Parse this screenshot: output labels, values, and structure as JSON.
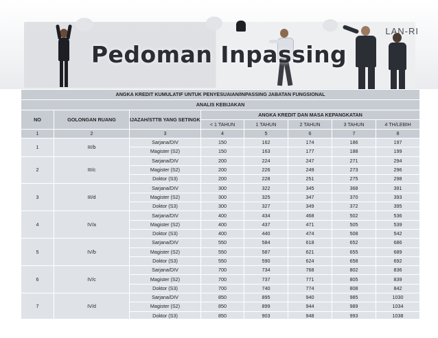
{
  "banner": {
    "title": "Pedoman Inpassing",
    "brand": "LAN-RI"
  },
  "table": {
    "header_main": "ANGKA KREDIT KUMULATIF UNTUK PENYESUAIAN/INPASSING JABATAN FUNGSIONAL",
    "header_sub": "ANALIS KEBIJAKAN",
    "col_no": "NO",
    "col_golongan": "GOLONGAN RUANG",
    "col_ijazah": "IJAZAH/STTB YANG SETINGKAT",
    "col_group": "ANGKA KREDIT DAN MASA KEPANGKATAN",
    "col_years": [
      "< 1 TAHUN",
      "1 TAHUN",
      "2 TAHUN",
      "3 TAHUN",
      "4 TH/LEBIH"
    ],
    "col_numbers": [
      "1",
      "2",
      "3",
      "4",
      "5",
      "6",
      "7",
      "8"
    ],
    "groups": [
      {
        "no": "1",
        "gol": "III/b",
        "rows": [
          {
            "ijazah": "Sarjana/DIV",
            "v": [
              "150",
              "162",
              "174",
              "186",
              "197"
            ]
          },
          {
            "ijazah": "Magister (S2)",
            "v": [
              "150",
              "163",
              "177",
              "188",
              "199"
            ]
          }
        ]
      },
      {
        "no": "2",
        "gol": "III/c",
        "rows": [
          {
            "ijazah": "Sarjana/DIV",
            "v": [
              "200",
              "224",
              "247",
              "271",
              "294"
            ]
          },
          {
            "ijazah": "Magister (S2)",
            "v": [
              "200",
              "226",
              "249",
              "273",
              "296"
            ]
          },
          {
            "ijazah": "Doktor (S3)",
            "v": [
              "200",
              "228",
              "251",
              "275",
              "298"
            ]
          }
        ]
      },
      {
        "no": "3",
        "gol": "III/d",
        "rows": [
          {
            "ijazah": "Sarjana/DIV",
            "v": [
              "300",
              "322",
              "345",
              "368",
              "391"
            ]
          },
          {
            "ijazah": "Magister (S2)",
            "v": [
              "300",
              "325",
              "347",
              "370",
              "393"
            ]
          },
          {
            "ijazah": "Doktor (S3)",
            "v": [
              "300",
              "327",
              "349",
              "372",
              "395"
            ]
          }
        ]
      },
      {
        "no": "4",
        "gol": "IV/a",
        "rows": [
          {
            "ijazah": "Sarjana/DIV",
            "v": [
              "400",
              "434",
              "468",
              "502",
              "536"
            ]
          },
          {
            "ijazah": "Magister (S2)",
            "v": [
              "400",
              "437",
              "471",
              "505",
              "539"
            ]
          },
          {
            "ijazah": "Doktor (S3)",
            "v": [
              "400",
              "440",
              "474",
              "508",
              "542"
            ]
          }
        ]
      },
      {
        "no": "5",
        "gol": "IV/b",
        "rows": [
          {
            "ijazah": "Sarjana/DIV",
            "v": [
              "550",
              "584",
              "618",
              "652",
              "686"
            ]
          },
          {
            "ijazah": "Magister (S2)",
            "v": [
              "550",
              "587",
              "621",
              "655",
              "689"
            ]
          },
          {
            "ijazah": "Doktor (S3)",
            "v": [
              "550",
              "590",
              "624",
              "658",
              "692"
            ]
          }
        ]
      },
      {
        "no": "6",
        "gol": "IV/c",
        "rows": [
          {
            "ijazah": "Sarjana/DIV",
            "v": [
              "700",
              "734",
              "768",
              "802",
              "836"
            ]
          },
          {
            "ijazah": "Magister (S2)",
            "v": [
              "700",
              "737",
              "771",
              "805",
              "839"
            ]
          },
          {
            "ijazah": "Doktor (S3)",
            "v": [
              "700",
              "740",
              "774",
              "808",
              "842"
            ]
          }
        ]
      },
      {
        "no": "7",
        "gol": "IV/d",
        "rows": [
          {
            "ijazah": "Sarjana/DIV",
            "v": [
              "850",
              "895",
              "940",
              "985",
              "1030"
            ]
          },
          {
            "ijazah": "Magister (S2)",
            "v": [
              "850",
              "899",
              "944",
              "989",
              "1034"
            ]
          },
          {
            "ijazah": "Doktor (S3)",
            "v": [
              "850",
              "903",
              "948",
              "993",
              "1038"
            ]
          }
        ]
      }
    ]
  }
}
